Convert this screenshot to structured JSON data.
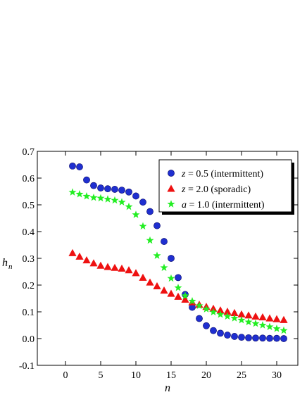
{
  "chart_data": {
    "type": "scatter",
    "xlabel": "n",
    "ylabel_main": "h",
    "ylabel_sub": "n",
    "xlim": [
      -4,
      33
    ],
    "ylim": [
      -0.1,
      0.7
    ],
    "xticks": [
      0,
      5,
      10,
      15,
      20,
      25,
      30
    ],
    "xtick_labels": [
      "0",
      "5",
      "10",
      "15",
      "20",
      "25",
      "30"
    ],
    "yticks": [
      -0.1,
      0.0,
      0.1,
      0.2,
      0.3,
      0.4,
      0.5,
      0.6,
      0.7
    ],
    "ytick_labels": [
      "-0.1",
      "0.0",
      "0.1",
      "0.2",
      "0.3",
      "0.4",
      "0.5",
      "0.6",
      "0.7"
    ],
    "legend_position": "top-right",
    "series": [
      {
        "name": "z = 0.5 (intermittent)",
        "legend_var": "z",
        "legend_rest": " = 0.5 (intermittent)",
        "marker": "circle",
        "color": "#1f2fd0",
        "x": [
          1,
          2,
          3,
          4,
          5,
          6,
          7,
          8,
          9,
          10,
          11,
          12,
          13,
          14,
          15,
          16,
          17,
          18,
          19,
          20,
          21,
          22,
          23,
          24,
          25,
          26,
          27,
          28,
          29,
          30,
          31
        ],
        "values": [
          0.645,
          0.642,
          0.593,
          0.572,
          0.563,
          0.56,
          0.558,
          0.555,
          0.548,
          0.533,
          0.51,
          0.475,
          0.422,
          0.363,
          0.3,
          0.228,
          0.165,
          0.117,
          0.075,
          0.048,
          0.03,
          0.02,
          0.013,
          0.008,
          0.005,
          0.003,
          0.002,
          0.002,
          0.001,
          0.001,
          0.0
        ]
      },
      {
        "name": "z = 2.0 (sporadic)",
        "legend_var": "z",
        "legend_rest": " = 2.0 (sporadic)",
        "marker": "triangle",
        "color": "#ee1111",
        "x": [
          1,
          2,
          3,
          4,
          5,
          6,
          7,
          8,
          9,
          10,
          11,
          12,
          13,
          14,
          15,
          16,
          17,
          18,
          19,
          20,
          21,
          22,
          23,
          24,
          25,
          26,
          27,
          28,
          29,
          30,
          31
        ],
        "values": [
          0.32,
          0.307,
          0.293,
          0.282,
          0.273,
          0.268,
          0.265,
          0.262,
          0.256,
          0.245,
          0.228,
          0.21,
          0.196,
          0.18,
          0.168,
          0.157,
          0.146,
          0.136,
          0.127,
          0.119,
          0.112,
          0.106,
          0.101,
          0.096,
          0.091,
          0.087,
          0.083,
          0.08,
          0.076,
          0.073,
          0.07
        ]
      },
      {
        "name": "a = 1.0 (intermittent)",
        "legend_var": "a",
        "legend_rest": " = 1.0 (intermittent)",
        "marker": "star",
        "color": "#22ee22",
        "x": [
          1,
          2,
          3,
          4,
          5,
          6,
          7,
          8,
          9,
          10,
          11,
          12,
          13,
          14,
          15,
          16,
          17,
          18,
          19,
          20,
          21,
          22,
          23,
          24,
          25,
          26,
          27,
          28,
          29,
          30,
          31
        ],
        "values": [
          0.547,
          0.54,
          0.532,
          0.527,
          0.525,
          0.521,
          0.517,
          0.51,
          0.493,
          0.463,
          0.42,
          0.367,
          0.31,
          0.265,
          0.225,
          0.19,
          0.16,
          0.14,
          0.123,
          0.11,
          0.099,
          0.09,
          0.083,
          0.076,
          0.069,
          0.062,
          0.056,
          0.05,
          0.044,
          0.037,
          0.03
        ]
      }
    ]
  }
}
